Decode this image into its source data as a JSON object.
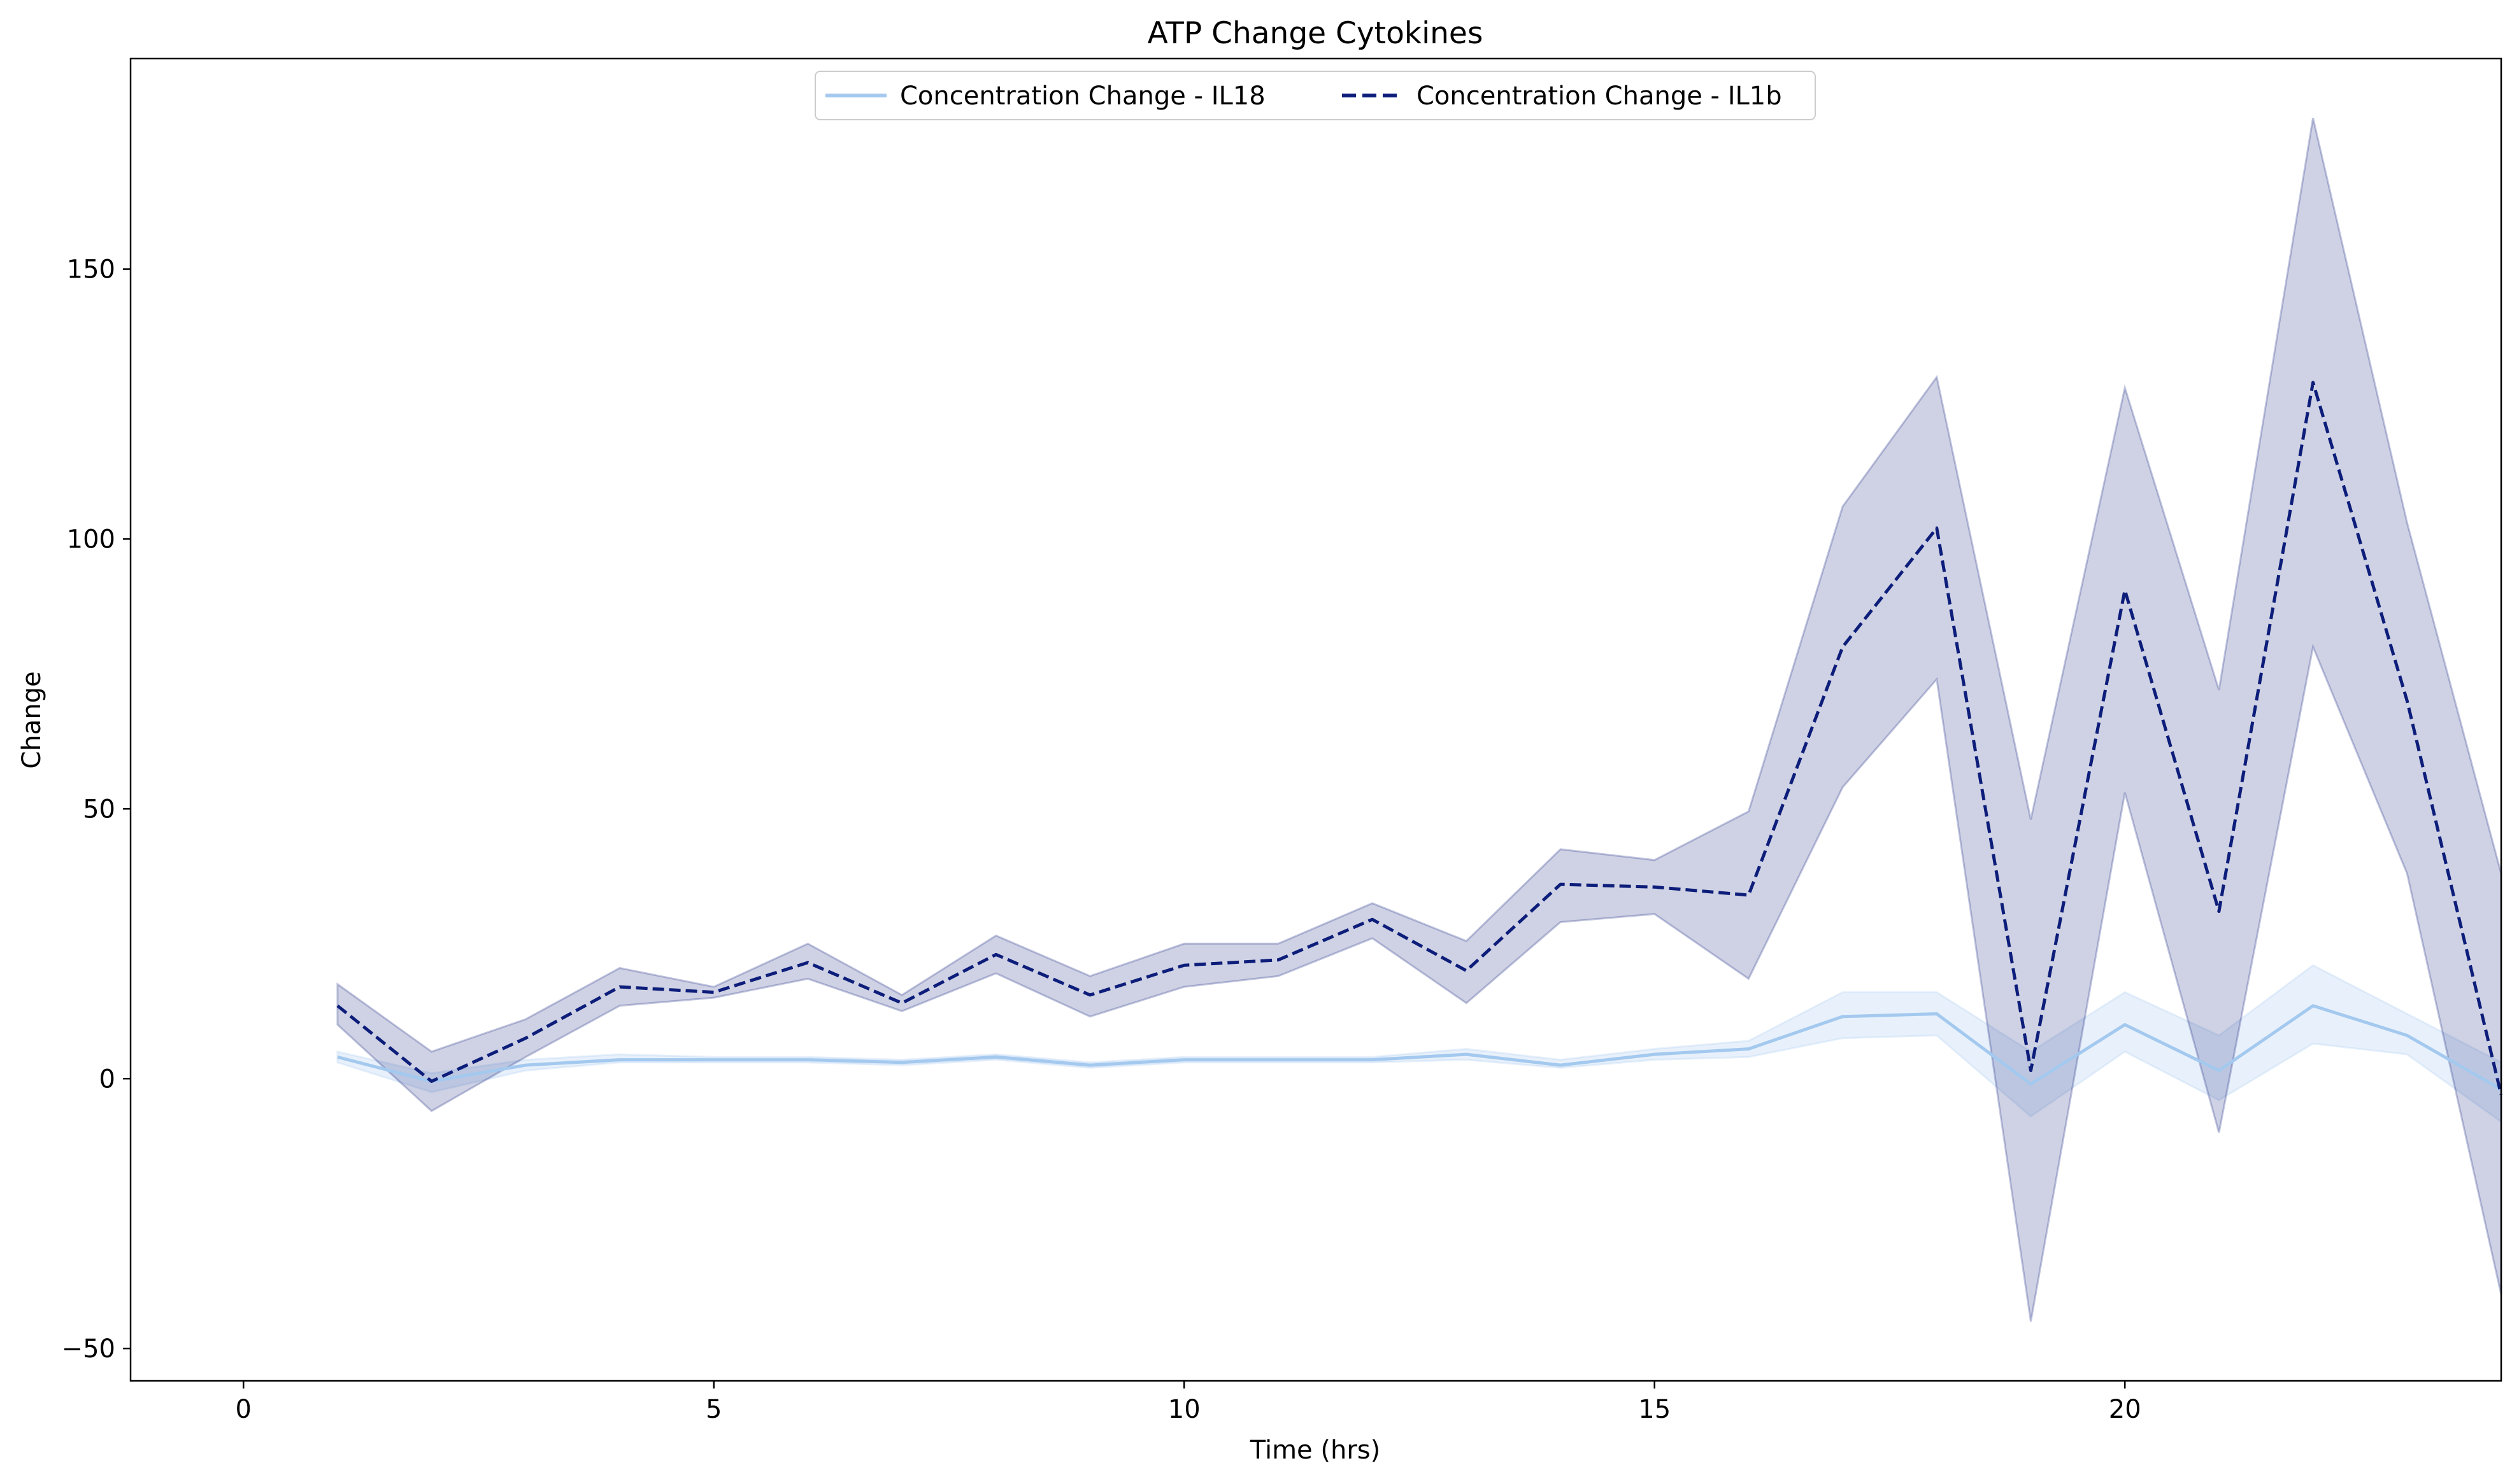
{
  "chart_data": {
    "type": "line",
    "title": "ATP Change Cytokines",
    "xlabel": "Time (hrs)",
    "ylabel": "Change",
    "xlim": [
      -1.2,
      24
    ],
    "ylim": [
      -56,
      189
    ],
    "xticks": [
      0,
      5,
      10,
      15,
      20
    ],
    "yticks": [
      -50,
      0,
      50,
      100,
      150
    ],
    "grid": false,
    "legend_position": "top-center",
    "x": [
      1,
      2,
      3,
      4,
      5,
      6,
      7,
      8,
      9,
      10,
      11,
      12,
      13,
      14,
      15,
      16,
      17,
      18,
      19,
      20,
      21,
      22,
      23,
      24
    ],
    "series": [
      {
        "name": "Concentration Change  - IL18",
        "color": "#a4c9ef",
        "line_style": "solid",
        "values": [
          4,
          -0.5,
          2.5,
          3.5,
          3.5,
          3.5,
          3,
          4,
          2.5,
          3.5,
          3.5,
          3.5,
          4.5,
          2.5,
          4.5,
          5.5,
          11.5,
          12,
          -1,
          10,
          1.5,
          13.5,
          8,
          -2
        ],
        "lower": [
          3,
          -2.5,
          1.5,
          3,
          3,
          3,
          2.5,
          3.5,
          2,
          3,
          3,
          3,
          3.5,
          2,
          3.5,
          4,
          7.5,
          8,
          -7,
          5,
          -4,
          6.5,
          4.5,
          -8
        ],
        "upper": [
          5,
          1,
          3.5,
          4.5,
          4,
          4,
          3.5,
          4.5,
          3,
          4,
          4,
          4,
          5.5,
          3.5,
          5.5,
          7,
          16,
          16,
          5,
          16,
          8,
          21,
          12,
          3
        ]
      },
      {
        "name": "Concentration Change  - IL1b",
        "color": "#0d1d7a",
        "line_style": "dashed",
        "values": [
          13.5,
          -0.5,
          7.5,
          17,
          16,
          21.5,
          14,
          23,
          15.5,
          21,
          22,
          29.5,
          20,
          36,
          35.5,
          34,
          80,
          102,
          1.5,
          90.5,
          31,
          129,
          70,
          -3
        ],
        "lower": [
          10,
          -6,
          4,
          13.5,
          15,
          18.5,
          12.5,
          19.5,
          11.5,
          17,
          19,
          26,
          14,
          29,
          30.5,
          18.5,
          54,
          74,
          -45,
          53,
          -10,
          80,
          38,
          -40
        ],
        "upper": [
          17.5,
          5,
          11,
          20.5,
          17,
          25,
          15.5,
          26.5,
          19,
          25,
          25,
          32.5,
          25.5,
          42.5,
          40.5,
          49.5,
          106,
          130,
          48,
          128,
          72,
          178,
          103,
          38
        ]
      }
    ]
  }
}
